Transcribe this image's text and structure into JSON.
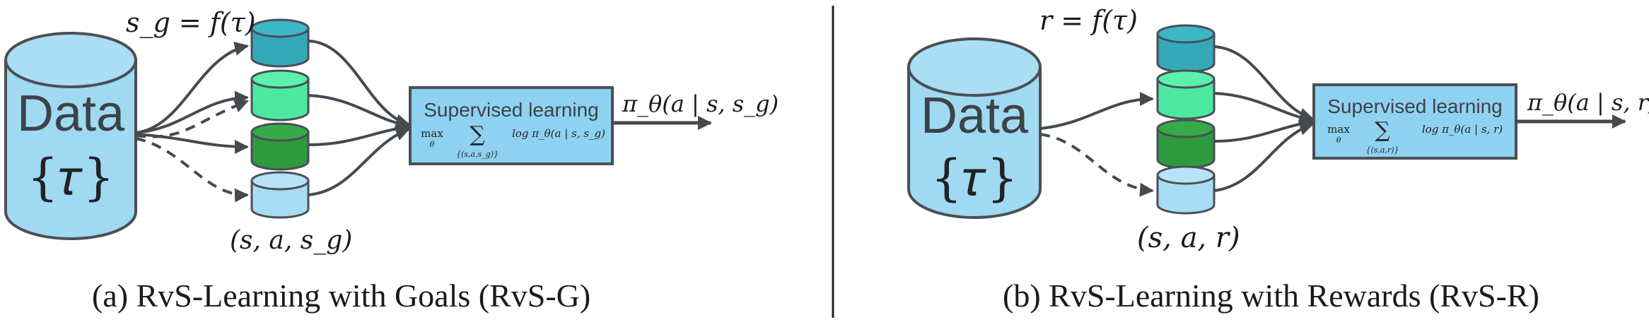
{
  "colors": {
    "db_fill": "#9fd9f2",
    "db_stroke": "#4b4f55",
    "cyl_teal": "#35a8b8",
    "cyl_mint": "#4de8a0",
    "cyl_green": "#2e9a3d",
    "cyl_light": "#a8dcf5",
    "box_fill": "#8fd1f0",
    "arrow": "#444a4f"
  },
  "panel_a": {
    "db_label": "Data",
    "db_symbol": "{𝜏}",
    "top_label": "s_g = f(τ)",
    "bottom_label": "(s, a, s_g)",
    "box_title": "Supervised learning",
    "box_max": "max",
    "box_max_sub": "θ",
    "box_sum": "∑",
    "box_sum_sub": "{(s,a,s_g)}",
    "box_objective": "log π_θ(a | s, s_g)",
    "output_label": "π_θ(a | s, s_g)",
    "caption": "(a) RvS-Learning with Goals (RvS-G)"
  },
  "panel_b": {
    "db_label": "Data",
    "db_symbol": "{𝜏}",
    "top_label": "r = f(τ)",
    "bottom_label": "(s, a, r)",
    "box_title": "Supervised learning",
    "box_max": "max",
    "box_max_sub": "θ",
    "box_sum": "∑",
    "box_sum_sub": "{(s,a,r)}",
    "box_objective": "log π_θ(a | s, r)",
    "output_label": "π_θ(a | s, r)",
    "caption": "(b) RvS-Learning with Rewards (RvS-R)"
  }
}
